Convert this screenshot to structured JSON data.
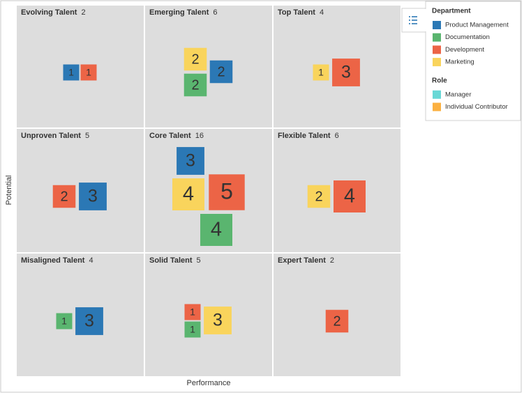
{
  "chart_data": {
    "type": "nbox",
    "x_label": "Performance",
    "y_label": "Potential",
    "cells": [
      {
        "title": "Evolving Talent",
        "count": 2,
        "items": [
          {
            "value": 1,
            "color": "#2b78b5"
          },
          {
            "value": 1,
            "color": "#ec6446"
          }
        ]
      },
      {
        "title": "Emerging Talent",
        "count": 6,
        "items": [
          {
            "value": 2,
            "color": "#f9d45c"
          },
          {
            "value": 2,
            "color": "#2b78b5"
          },
          {
            "value": 2,
            "color": "#5ab56f"
          }
        ]
      },
      {
        "title": "Top Talent",
        "count": 4,
        "items": [
          {
            "value": 1,
            "color": "#f9d45c"
          },
          {
            "value": 3,
            "color": "#ec6446"
          }
        ]
      },
      {
        "title": "Unproven Talent",
        "count": 5,
        "items": [
          {
            "value": 2,
            "color": "#ec6446"
          },
          {
            "value": 3,
            "color": "#2b78b5"
          }
        ]
      },
      {
        "title": "Core Talent",
        "count": 16,
        "items": [
          {
            "value": 3,
            "color": "#2b78b5"
          },
          {
            "value": 4,
            "color": "#f9d45c"
          },
          {
            "value": 5,
            "color": "#ec6446"
          },
          {
            "value": 4,
            "color": "#5ab56f"
          }
        ]
      },
      {
        "title": "Flexible Talent",
        "count": 6,
        "items": [
          {
            "value": 2,
            "color": "#f9d45c"
          },
          {
            "value": 4,
            "color": "#ec6446"
          }
        ]
      },
      {
        "title": "Misaligned Talent",
        "count": 4,
        "items": [
          {
            "value": 1,
            "color": "#5ab56f"
          },
          {
            "value": 3,
            "color": "#2b78b5"
          }
        ]
      },
      {
        "title": "Solid Talent",
        "count": 5,
        "items": [
          {
            "value": 1,
            "color": "#ec6446"
          },
          {
            "value": 1,
            "color": "#5ab56f"
          },
          {
            "value": 3,
            "color": "#f9d45c"
          }
        ]
      },
      {
        "title": "Expert Talent",
        "count": 2,
        "items": [
          {
            "value": 2,
            "color": "#ec6446"
          }
        ]
      }
    ],
    "legend": {
      "sections": [
        {
          "title": "Department",
          "entries": [
            {
              "name": "Product Management",
              "color": "#2b78b5"
            },
            {
              "name": "Documentation",
              "color": "#5ab56f"
            },
            {
              "name": "Development",
              "color": "#ec6446"
            },
            {
              "name": "Marketing",
              "color": "#f9d45c"
            }
          ]
        },
        {
          "title": "Role",
          "entries": [
            {
              "name": "Manager",
              "color": "#68d8d6"
            },
            {
              "name": "Individual Contributor",
              "color": "#fbb040"
            }
          ]
        }
      ]
    }
  }
}
